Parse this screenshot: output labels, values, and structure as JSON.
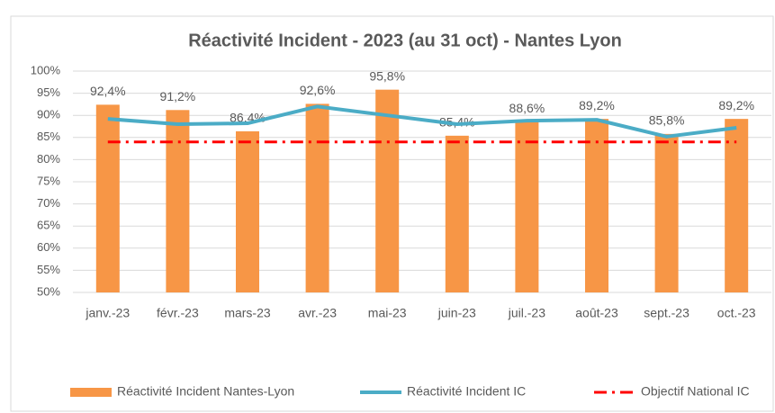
{
  "chart_data": {
    "type": "bar",
    "title": "Réactivité Incident - 2023 (au 31 oct) - Nantes Lyon",
    "categories": [
      "janv.-23",
      "févr.-23",
      "mars-23",
      "avr.-23",
      "mai-23",
      "juin-23",
      "juil.-23",
      "août-23",
      "sept.-23",
      "oct.-23"
    ],
    "series": [
      {
        "name": "Réactivité Incident Nantes-Lyon",
        "type": "bar",
        "color": "#f79646",
        "values": [
          92.4,
          91.2,
          86.4,
          92.6,
          95.8,
          85.4,
          88.6,
          89.2,
          85.8,
          89.2
        ],
        "value_labels": [
          "92,4%",
          "91,2%",
          "86,4%",
          "92,6%",
          "95,8%",
          "85,4%",
          "88,6%",
          "89,2%",
          "85,8%",
          "89,2%"
        ]
      },
      {
        "name": "Réactivité Incident IC",
        "type": "line",
        "color": "#4bacc6",
        "values": [
          89.2,
          88,
          88.2,
          92,
          90,
          88,
          88.8,
          89,
          85.2,
          87.2
        ]
      },
      {
        "name": "Objectif National IC",
        "type": "line",
        "dash": "dash-dot",
        "color": "#ff0000",
        "values": [
          84,
          84,
          84,
          84,
          84,
          84,
          84,
          84,
          84,
          84
        ]
      }
    ],
    "ylim": [
      50,
      100
    ],
    "yticks": [
      {
        "value": 50,
        "label": "50%"
      },
      {
        "value": 55,
        "label": "55%"
      },
      {
        "value": 60,
        "label": "60%"
      },
      {
        "value": 65,
        "label": "65%"
      },
      {
        "value": 70,
        "label": "70%"
      },
      {
        "value": 75,
        "label": "75%"
      },
      {
        "value": 80,
        "label": "80%"
      },
      {
        "value": 85,
        "label": "85%"
      },
      {
        "value": 90,
        "label": "90%"
      },
      {
        "value": 95,
        "label": "95%"
      },
      {
        "value": 100,
        "label": "100%"
      }
    ],
    "grid": true,
    "legend": "bottom"
  }
}
